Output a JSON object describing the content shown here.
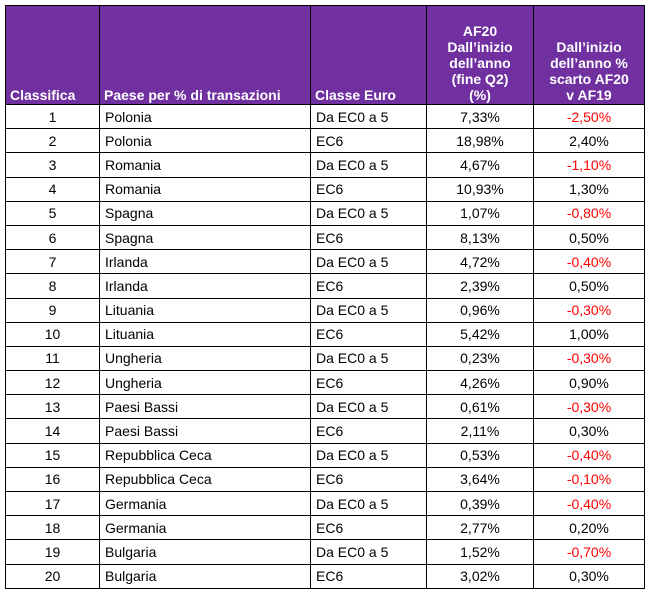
{
  "headers": {
    "rank": "Classifica",
    "country": "Paese per % di transazioni",
    "euro_class": "Classe Euro",
    "af20_lines": [
      "AF20",
      "Dall’inizio",
      "dell’anno",
      "(fine Q2)",
      "(%)"
    ],
    "diff_lines": [
      "Dall’inizio",
      "dell’anno %",
      "scarto AF20",
      "v AF19"
    ]
  },
  "colors": {
    "header_bg": "#7030a0",
    "header_text": "#ffffff",
    "negative": "#ff0000"
  },
  "rows": [
    {
      "rank": "1",
      "country": "Polonia",
      "euro_class": "Da EC0 a 5",
      "af20": "7,33%",
      "diff": "-2,50%"
    },
    {
      "rank": "2",
      "country": "Polonia",
      "euro_class": "EC6",
      "af20": "18,98%",
      "diff": "2,40%"
    },
    {
      "rank": "3",
      "country": "Romania",
      "euro_class": "Da EC0 a 5",
      "af20": "4,67%",
      "diff": "-1,10%"
    },
    {
      "rank": "4",
      "country": "Romania",
      "euro_class": "EC6",
      "af20": "10,93%",
      "diff": "1,30%"
    },
    {
      "rank": "5",
      "country": "Spagna",
      "euro_class": "Da EC0 a 5",
      "af20": "1,07%",
      "diff": "-0,80%"
    },
    {
      "rank": "6",
      "country": "Spagna",
      "euro_class": "EC6",
      "af20": "8,13%",
      "diff": "0,50%"
    },
    {
      "rank": "7",
      "country": "Irlanda",
      "euro_class": "Da EC0 a 5",
      "af20": "4,72%",
      "diff": "-0,40%"
    },
    {
      "rank": "8",
      "country": "Irlanda",
      "euro_class": "EC6",
      "af20": "2,39%",
      "diff": "0,50%"
    },
    {
      "rank": "9",
      "country": "Lituania",
      "euro_class": "Da EC0 a 5",
      "af20": "0,96%",
      "diff": "-0,30%"
    },
    {
      "rank": "10",
      "country": "Lituania",
      "euro_class": "EC6",
      "af20": "5,42%",
      "diff": "1,00%"
    },
    {
      "rank": "11",
      "country": "Ungheria",
      "euro_class": "Da EC0 a 5",
      "af20": "0,23%",
      "diff": "-0,30%"
    },
    {
      "rank": "12",
      "country": "Ungheria",
      "euro_class": "EC6",
      "af20": "4,26%",
      "diff": "0,90%"
    },
    {
      "rank": "13",
      "country": "Paesi Bassi",
      "euro_class": "Da EC0 a 5",
      "af20": "0,61%",
      "diff": "-0,30%"
    },
    {
      "rank": "14",
      "country": "Paesi Bassi",
      "euro_class": "EC6",
      "af20": "2,11%",
      "diff": "0,30%"
    },
    {
      "rank": "15",
      "country": "Repubblica Ceca",
      "euro_class": "Da EC0 a 5",
      "af20": "0,53%",
      "diff": "-0,40%"
    },
    {
      "rank": "16",
      "country": "Repubblica Ceca",
      "euro_class": "EC6",
      "af20": "3,64%",
      "diff": "-0,10%"
    },
    {
      "rank": "17",
      "country": "Germania",
      "euro_class": "Da EC0 a 5",
      "af20": "0,39%",
      "diff": "-0,40%"
    },
    {
      "rank": "18",
      "country": "Germania",
      "euro_class": "EC6",
      "af20": "2,77%",
      "diff": "0,20%"
    },
    {
      "rank": "19",
      "country": "Bulgaria",
      "euro_class": "Da EC0 a 5",
      "af20": "1,52%",
      "diff": "-0,70%"
    },
    {
      "rank": "20",
      "country": "Bulgaria",
      "euro_class": "EC6",
      "af20": "3,02%",
      "diff": "0,30%"
    }
  ]
}
